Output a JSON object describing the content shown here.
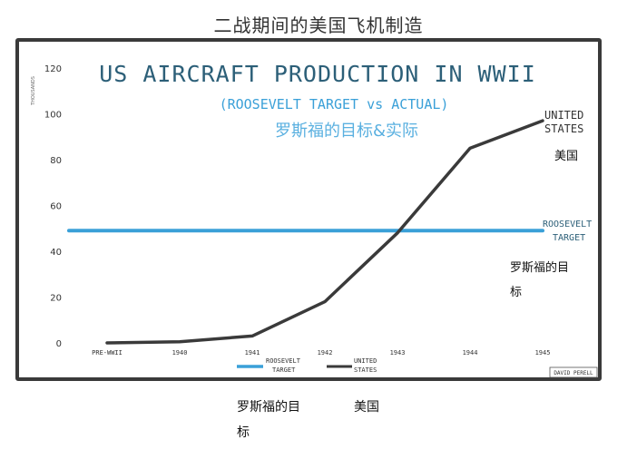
{
  "page_title": "二战期间的美国飞机制造",
  "chart_data": {
    "type": "line",
    "title": "US AIRCRAFT PRODUCTION IN WWII",
    "subtitle": "(ROOSEVELT TARGET vs ACTUAL)",
    "subtitle_cn": "罗斯福的目标&实际",
    "ylabel": "THOUSANDS",
    "xlabel": "",
    "ylim": [
      0,
      120
    ],
    "y_ticks": [
      "0",
      "20",
      "40",
      "60",
      "80",
      "100",
      "120"
    ],
    "categories": [
      "PRE-WWII",
      "1940",
      "1941",
      "1942",
      "1943",
      "1944",
      "1945"
    ],
    "series": [
      {
        "name": "ROOSEVELT TARGET",
        "name_cn": "罗斯福的目标",
        "color": "#3aa0d8",
        "values": [
          49,
          49,
          49,
          49,
          49,
          49,
          49
        ]
      },
      {
        "name": "UNITED STATES",
        "name_cn": "美国",
        "color": "#3a3a3a",
        "values": [
          0,
          0.5,
          3,
          18,
          48,
          85,
          97
        ]
      }
    ],
    "grid": false,
    "legend_position": "bottom",
    "credit": "DAVID PERELL"
  },
  "below_labels": {
    "target_cn_line1": "罗斯福的目",
    "target_cn_line2": "标",
    "us_cn": "美国"
  }
}
